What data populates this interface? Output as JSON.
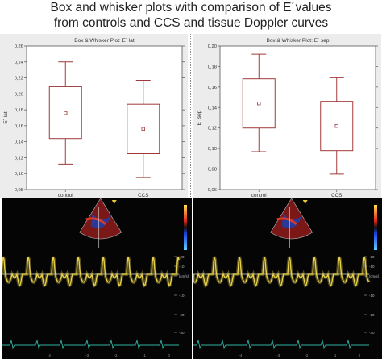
{
  "figure": {
    "title_line1": "Box and whisker plots with comparison of E´values",
    "title_line2": "from controls and CCS and tissue Doppler curves"
  },
  "chart_data": [
    {
      "type": "box",
      "title": "Box & Whisker Plot: E´ lat",
      "ylabel": "E´ lat",
      "xlabel": "",
      "ylim": [
        0.08,
        0.26
      ],
      "yticks": [
        "0,08",
        "0,10",
        "0,12",
        "0,14",
        "0,16",
        "0,18",
        "0,20",
        "0,22",
        "0,24",
        "0,26"
      ],
      "categories": [
        "control",
        "CCS"
      ],
      "boxes": [
        {
          "category": "control",
          "whisker_low": 0.112,
          "q1": 0.144,
          "mean": 0.176,
          "q3": 0.209,
          "whisker_high": 0.24
        },
        {
          "category": "CCS",
          "whisker_low": 0.095,
          "q1": 0.125,
          "mean": 0.156,
          "q3": 0.187,
          "whisker_high": 0.217
        }
      ],
      "grid": false
    },
    {
      "type": "box",
      "title": "Box & Whisker Plot: E´ sep",
      "ylabel": "E´ sep",
      "xlabel": "",
      "ylim": [
        0.06,
        0.2
      ],
      "yticks": [
        "0,06",
        "0,08",
        "0,10",
        "0,12",
        "0,14",
        "0,16",
        "0,18",
        "0,20"
      ],
      "categories": [
        "control",
        "CCS"
      ],
      "boxes": [
        {
          "category": "control",
          "whisker_low": 0.097,
          "q1": 0.12,
          "mean": 0.144,
          "q3": 0.168,
          "whisker_high": 0.192
        },
        {
          "category": "CCS",
          "whisker_low": 0.075,
          "q1": 0.098,
          "mean": 0.122,
          "q3": 0.146,
          "whisker_high": 0.169
        }
      ],
      "grid": false
    }
  ],
  "colors": {
    "box_line": "#a03a3a",
    "doppler_wave": "#e8d24a",
    "baseline": "#d8d8d8",
    "ecg": "#2fb3a0",
    "axis": "#333333"
  },
  "ultrasound": [
    {
      "scale_ticks": [
        "-20",
        "-10",
        "[cm/s]",
        "-10",
        "-20",
        "-30"
      ],
      "footer_marks": [
        "-4",
        "-3",
        "-2",
        "-1",
        "0"
      ]
    },
    {
      "scale_ticks": [
        "-20",
        "-10",
        "[cm/s]",
        "-10",
        "-20",
        "-30"
      ],
      "footer_marks": [
        "-4",
        "-3",
        "-2",
        "-1",
        "0"
      ]
    }
  ]
}
